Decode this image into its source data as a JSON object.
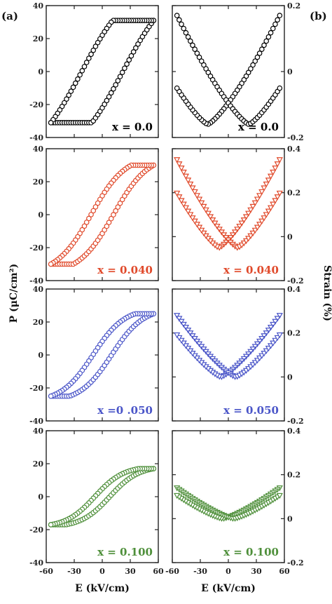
{
  "panel_labels": {
    "left": "(a)",
    "right": "(b)"
  },
  "axis_titles": {
    "left_y": "P (μC/cm²)",
    "right_y": "Strain (%)",
    "left_x": "E (kV/cm)",
    "right_x": "E (kV/cm)"
  },
  "chart_data": [
    {
      "type": "scatter",
      "panel": "a",
      "row": 0,
      "label": "x = 0.0",
      "color": "#000000",
      "marker": "circle",
      "xlim": [
        -60,
        60
      ],
      "ylim": [
        -40,
        40
      ],
      "xticks": [
        -60,
        -30,
        0,
        30,
        60
      ],
      "yticks": [
        -40,
        -20,
        0,
        20,
        40
      ],
      "loop": {
        "kind": "polarization",
        "Pmax": 31,
        "Pr": 18,
        "Ec": 22
      }
    },
    {
      "type": "scatter",
      "panel": "b",
      "row": 0,
      "label": "x = 0.0",
      "color": "#000000",
      "marker": "circle",
      "xlim": [
        -60,
        60
      ],
      "ylim": [
        -0.2,
        0.2
      ],
      "xticks": [
        -60,
        -30,
        0,
        30,
        60
      ],
      "yticks": [
        -0.2,
        0.0,
        0.2
      ],
      "loop": {
        "kind": "strain",
        "Smax": 0.17,
        "Smin": -0.16,
        "Ec": 22
      }
    },
    {
      "type": "scatter",
      "panel": "a",
      "row": 1,
      "label": "x = 0.040",
      "color": "#e0492a",
      "marker": "circle",
      "xlim": [
        -60,
        60
      ],
      "ylim": [
        -40,
        40
      ],
      "xticks": [
        -60,
        -30,
        0,
        30,
        60
      ],
      "yticks": [
        -40,
        -20,
        0,
        20,
        40
      ],
      "loop": {
        "kind": "polarization",
        "Pmax": 30,
        "Pr": 9,
        "Ec": 12
      }
    },
    {
      "type": "scatter",
      "panel": "b",
      "row": 1,
      "label": "x = 0.040",
      "color": "#e0492a",
      "marker": "triangle-down",
      "xlim": [
        -60,
        60
      ],
      "ylim": [
        -0.2,
        0.4
      ],
      "xticks": [
        -60,
        -30,
        0,
        30,
        60
      ],
      "yticks": [
        -0.2,
        0.0,
        0.2,
        0.4
      ],
      "loop": {
        "kind": "strain",
        "Smax": 0.35,
        "Smin": -0.05,
        "Ec": 10
      }
    },
    {
      "type": "scatter",
      "panel": "a",
      "row": 2,
      "label": "x =0 .050",
      "color": "#4a55c8",
      "marker": "circle",
      "xlim": [
        -60,
        60
      ],
      "ylim": [
        -40,
        40
      ],
      "xticks": [
        -60,
        -30,
        0,
        30,
        60
      ],
      "yticks": [
        -40,
        -20,
        0,
        20,
        40
      ],
      "loop": {
        "kind": "polarization",
        "Pmax": 25,
        "Pr": 6,
        "Ec": 10
      }
    },
    {
      "type": "scatter",
      "panel": "b",
      "row": 2,
      "label": "x = 0.050",
      "color": "#4a55c8",
      "marker": "triangle-down",
      "xlim": [
        -60,
        60
      ],
      "ylim": [
        -0.2,
        0.4
      ],
      "xticks": [
        -60,
        -30,
        0,
        30,
        60
      ],
      "yticks": [
        -0.2,
        0.0,
        0.2,
        0.4
      ],
      "loop": {
        "kind": "strain",
        "Smax": 0.28,
        "Smin": 0.0,
        "Ec": 8
      }
    },
    {
      "type": "scatter",
      "panel": "a",
      "row": 3,
      "label": "x = 0.100",
      "color": "#4e8f3a",
      "marker": "circle",
      "xlim": [
        -60,
        60
      ],
      "ylim": [
        -40,
        40
      ],
      "xticks": [
        -60,
        -30,
        0,
        30,
        60
      ],
      "yticks": [
        -40,
        -20,
        0,
        20,
        40
      ],
      "loop": {
        "kind": "polarization",
        "Pmax": 17,
        "Pr": 3,
        "Ec": 8
      }
    },
    {
      "type": "scatter",
      "panel": "b",
      "row": 3,
      "label": "x = 0.100",
      "color": "#4e8f3a",
      "marker": "triangle-down",
      "xlim": [
        -60,
        60
      ],
      "ylim": [
        -0.2,
        0.4
      ],
      "xticks": [
        -60,
        -30,
        0,
        30,
        60
      ],
      "yticks": [
        -0.2,
        0.0,
        0.2,
        0.4
      ],
      "loop": {
        "kind": "strain",
        "Smax": 0.14,
        "Smin": 0.0,
        "Ec": 6
      }
    }
  ]
}
